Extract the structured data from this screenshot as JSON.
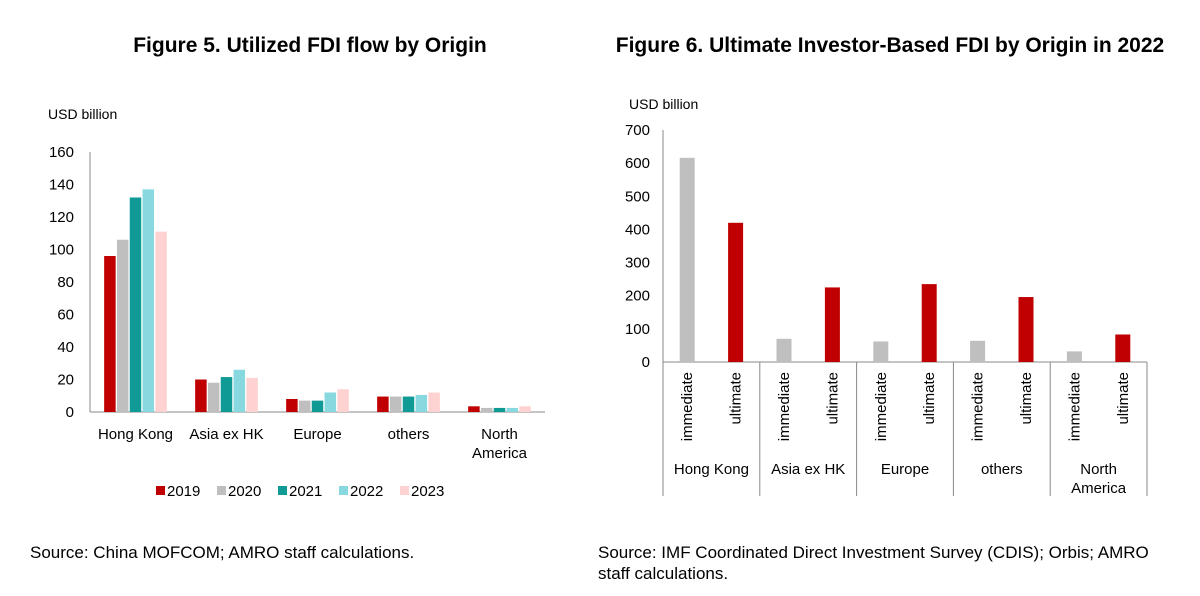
{
  "figure5": {
    "title": "Figure 5. Utilized FDI flow by Origin",
    "source": "Source:  China MOFCOM; AMRO staff calculations."
  },
  "figure6": {
    "title": "Figure 6. Ultimate Investor-Based FDI by Origin in 2022",
    "source": "Source: IMF Coordinated Direct Investment Survey (CDIS); Orbis; AMRO staff calculations."
  },
  "chart_data": [
    {
      "type": "bar",
      "title": "Figure 5. Utilized FDI flow by Origin",
      "ylabel": "USD billion",
      "xlabel": "",
      "ylim": [
        0,
        160
      ],
      "yticks": [
        0,
        20,
        40,
        60,
        80,
        100,
        120,
        140,
        160
      ],
      "categories": [
        "Hong Kong",
        "Asia ex HK",
        "Europe",
        "others",
        "North America"
      ],
      "series": [
        {
          "name": "2019",
          "color": "#C00000",
          "values": [
            96,
            20,
            8,
            9.5,
            3.5
          ]
        },
        {
          "name": "2020",
          "color": "#BFBFBF",
          "values": [
            106,
            18,
            7,
            9.5,
            2.5
          ]
        },
        {
          "name": "2021",
          "color": "#0F9A96",
          "values": [
            132,
            21.5,
            7,
            9.5,
            2.5
          ]
        },
        {
          "name": "2022",
          "color": "#88D8E0",
          "values": [
            137,
            26,
            12,
            10.5,
            2.5
          ]
        },
        {
          "name": "2023",
          "color": "#FFD2D2",
          "values": [
            111,
            21,
            14,
            12,
            3.5
          ]
        }
      ],
      "legend": "bottom"
    },
    {
      "type": "bar",
      "title": "Figure 6. Ultimate Investor-Based FDI by Origin in 2022",
      "ylabel": "USD billion",
      "xlabel": "",
      "ylim": [
        0,
        700
      ],
      "yticks": [
        0,
        100,
        200,
        300,
        400,
        500,
        600,
        700
      ],
      "groups": [
        "Hong Kong",
        "Asia ex HK",
        "Europe",
        "others",
        "North America"
      ],
      "subcategories": [
        "immediate",
        "ultimate"
      ],
      "series": [
        {
          "name": "immediate",
          "color": "#BFBFBF",
          "values": [
            616,
            70,
            62,
            64,
            32
          ]
        },
        {
          "name": "ultimate",
          "color": "#C00000",
          "values": [
            420,
            225,
            235,
            196,
            83
          ]
        }
      ],
      "legend": "none"
    }
  ]
}
